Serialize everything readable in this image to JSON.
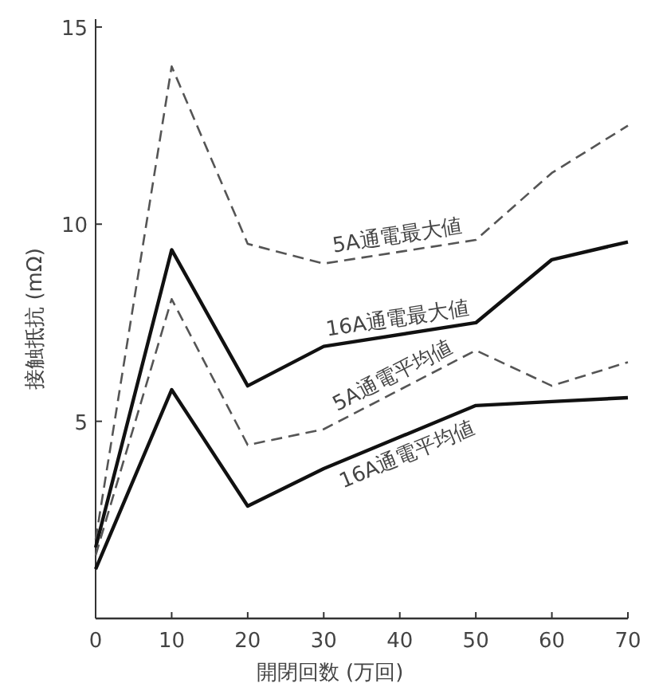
{
  "chart_data": {
    "type": "line",
    "xlabel": "開閉回数 (万回)",
    "ylabel": "接触抵抗 (mΩ)",
    "x": [
      0,
      10,
      20,
      30,
      50,
      60,
      70
    ],
    "xlim": [
      0,
      70
    ],
    "xticks": [
      0,
      10,
      20,
      30,
      40,
      50,
      60,
      70
    ],
    "ylim": [
      0,
      15.2
    ],
    "yticks": [
      5,
      10,
      15
    ],
    "grid": false,
    "series": [
      {
        "name": "5A通電最大値",
        "color": "#555555",
        "line_style": "dashed",
        "values": [
          2.0,
          14.0,
          9.5,
          9.0,
          9.6,
          11.3,
          12.5
        ]
      },
      {
        "name": "16A通電最大値",
        "color": "#111111",
        "line_style": "solid",
        "values": [
          1.8,
          9.35,
          5.9,
          6.9,
          7.5,
          9.1,
          9.55
        ]
      },
      {
        "name": "5A通電平均値",
        "color": "#555555",
        "line_style": "dashed",
        "values": [
          1.6,
          8.1,
          4.4,
          4.8,
          6.8,
          5.9,
          6.5
        ]
      },
      {
        "name": "16A通電平均値",
        "color": "#111111",
        "line_style": "solid",
        "values": [
          1.25,
          5.8,
          2.85,
          3.8,
          5.4,
          5.5,
          5.6
        ]
      }
    ]
  }
}
